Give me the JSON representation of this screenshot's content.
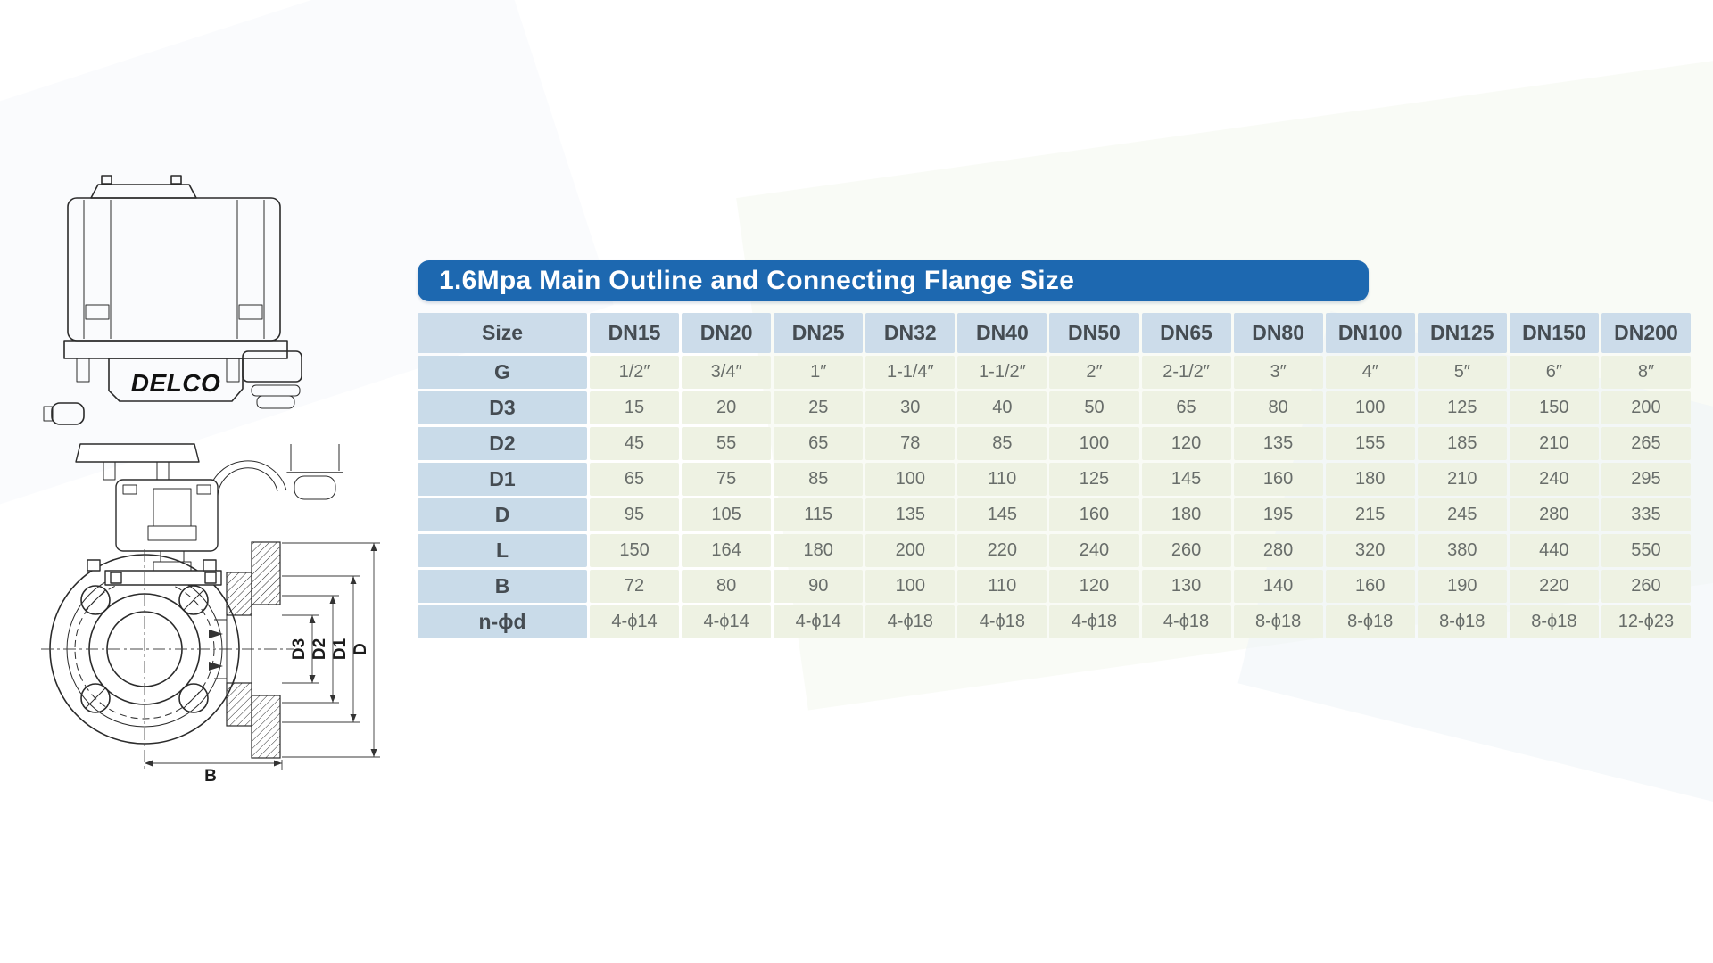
{
  "drawing": {
    "logo": "DELCO",
    "dims": {
      "d3": "D3",
      "d2": "D2",
      "d1": "D1",
      "d": "D",
      "b": "B"
    }
  },
  "table": {
    "title": "1.6Mpa Main Outline and Connecting Flange Size",
    "columns": [
      "Size",
      "DN15",
      "DN20",
      "DN25",
      "DN32",
      "DN40",
      "DN50",
      "DN65",
      "DN80",
      "DN100",
      "DN125",
      "DN150",
      "DN200"
    ],
    "rows": [
      {
        "label": "G",
        "values": [
          "1/2″",
          "3/4″",
          "1″",
          "1-1/4″",
          "1-1/2″",
          "2″",
          "2-1/2″",
          "3″",
          "4″",
          "5″",
          "6″",
          "8″"
        ]
      },
      {
        "label": "D3",
        "values": [
          "15",
          "20",
          "25",
          "30",
          "40",
          "50",
          "65",
          "80",
          "100",
          "125",
          "150",
          "200"
        ]
      },
      {
        "label": "D2",
        "values": [
          "45",
          "55",
          "65",
          "78",
          "85",
          "100",
          "120",
          "135",
          "155",
          "185",
          "210",
          "265"
        ]
      },
      {
        "label": "D1",
        "values": [
          "65",
          "75",
          "85",
          "100",
          "110",
          "125",
          "145",
          "160",
          "180",
          "210",
          "240",
          "295"
        ]
      },
      {
        "label": "D",
        "values": [
          "95",
          "105",
          "115",
          "135",
          "145",
          "160",
          "180",
          "195",
          "215",
          "245",
          "280",
          "335"
        ]
      },
      {
        "label": "L",
        "values": [
          "150",
          "164",
          "180",
          "200",
          "220",
          "240",
          "260",
          "280",
          "320",
          "380",
          "440",
          "550"
        ]
      },
      {
        "label": "B",
        "values": [
          "72",
          "80",
          "90",
          "100",
          "110",
          "120",
          "130",
          "140",
          "160",
          "190",
          "220",
          "260"
        ]
      },
      {
        "label": "n-ϕd",
        "values": [
          "4-ϕ14",
          "4-ϕ14",
          "4-ϕ14",
          "4-ϕ18",
          "4-ϕ18",
          "4-ϕ18",
          "4-ϕ18",
          "8-ϕ18",
          "8-ϕ18",
          "8-ϕ18",
          "8-ϕ18",
          "12-ϕ23"
        ]
      }
    ]
  },
  "colors": {
    "title_bar": "#1d68b0",
    "header_cell": "#ccdcea",
    "label_cell": "#c9dbe9",
    "value_cell": "#eef2e3",
    "header_text": "#454c52",
    "value_text": "#686d6a"
  }
}
